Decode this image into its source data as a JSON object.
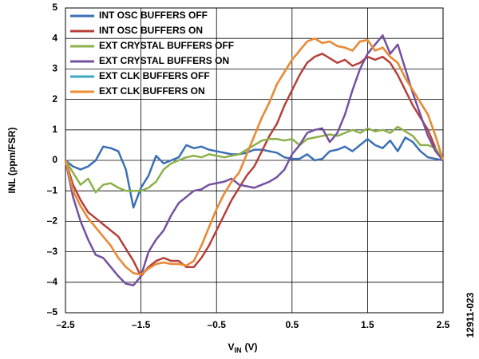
{
  "chart_data": {
    "type": "line",
    "ylabel": "INL (ppm/FSR)",
    "xlabel": "V",
    "xlabel_subscript": "IN",
    "xlabel_unit": "(V)",
    "figure_id": "12911-023",
    "x": [
      -2.5,
      -2.4,
      -2.3,
      -2.2,
      -2.1,
      -2.0,
      -1.9,
      -1.8,
      -1.7,
      -1.6,
      -1.5,
      -1.4,
      -1.3,
      -1.2,
      -1.1,
      -1.0,
      -0.9,
      -0.8,
      -0.7,
      -0.6,
      -0.5,
      -0.4,
      -0.3,
      -0.2,
      -0.1,
      0,
      0.1,
      0.2,
      0.3,
      0.4,
      0.5,
      0.6,
      0.7,
      0.8,
      0.9,
      1.0,
      1.1,
      1.2,
      1.3,
      1.4,
      1.5,
      1.6,
      1.7,
      1.8,
      1.9,
      2.0,
      2.1,
      2.2,
      2.3,
      2.4,
      2.5
    ],
    "xlim": [
      -2.5,
      2.5
    ],
    "xticks": [
      {
        "value": -2.5,
        "label": "–2.5"
      },
      {
        "value": -1.5,
        "label": "–1.5"
      },
      {
        "value": -0.5,
        "label": "–0.5"
      },
      0.5,
      1.5,
      2.5
    ],
    "ylim": [
      -5,
      5
    ],
    "yticks": [
      {
        "value": -5,
        "label": "–5"
      },
      {
        "value": -4,
        "label": "–4"
      },
      {
        "value": -3,
        "label": "–3"
      },
      {
        "value": -2,
        "label": "–2"
      },
      {
        "value": -1,
        "label": "–1"
      },
      0,
      1,
      2,
      3,
      4,
      5
    ],
    "grid": true,
    "legend": "upper-left",
    "series": [
      {
        "name": "INT OSC BUFFERS OFF",
        "color": "#3b6fb6",
        "values": [
          0,
          -0.2,
          -0.3,
          -0.2,
          0,
          0.45,
          0.4,
          0.3,
          -0.3,
          -1.55,
          -0.9,
          -0.5,
          0.15,
          -0.1,
          0,
          0.1,
          0.5,
          0.4,
          0.45,
          0.35,
          0.3,
          0.25,
          0.2,
          0.2,
          0.25,
          0.35,
          0.35,
          0.3,
          0.25,
          0.1,
          0.05,
          0.05,
          0.2,
          0,
          0.05,
          0.3,
          0.35,
          0.45,
          0.3,
          0.5,
          0.7,
          0.5,
          0.4,
          0.65,
          0.3,
          0.75,
          0.6,
          0.3,
          0.1,
          0.05,
          0
        ]
      },
      {
        "name": "INT OSC BUFFERS ON",
        "color": "#b5403a",
        "values": [
          0,
          -0.8,
          -1.3,
          -1.7,
          -1.9,
          -2.1,
          -2.3,
          -2.5,
          -2.9,
          -3.3,
          -3.8,
          -3.5,
          -3.3,
          -3.2,
          -3.3,
          -3.3,
          -3.5,
          -3.5,
          -3.2,
          -2.8,
          -2.3,
          -1.8,
          -1.3,
          -0.9,
          -0.5,
          -0.2,
          0.3,
          0.8,
          1.2,
          1.8,
          2.3,
          2.8,
          3.2,
          3.4,
          3.5,
          3.35,
          3.2,
          3.3,
          3.1,
          3.2,
          3.4,
          3.3,
          3.4,
          3.2,
          2.8,
          2.3,
          1.8,
          1.4,
          1.0,
          0.4,
          0
        ]
      },
      {
        "name": "EXT CRYSTAL BUFFERS OFF",
        "color": "#8cb04a",
        "values": [
          0,
          -0.4,
          -0.8,
          -0.6,
          -1.05,
          -0.8,
          -0.75,
          -0.9,
          -1.0,
          -1.0,
          -1.0,
          -0.9,
          -0.7,
          -0.3,
          -0.1,
          0,
          0.1,
          0.15,
          0.1,
          0.2,
          0.15,
          0.1,
          0.15,
          0.2,
          0.35,
          0.5,
          0.65,
          0.7,
          0.7,
          0.65,
          0.7,
          0.5,
          0.7,
          0.75,
          0.8,
          0.85,
          0.8,
          0.9,
          1.0,
          0.9,
          1.05,
          0.95,
          1.0,
          0.9,
          1.1,
          0.95,
          0.8,
          0.5,
          0.5,
          0.4,
          0
        ]
      },
      {
        "name": "EXT CRYSTAL BUFFERS ON",
        "color": "#7450a0",
        "values": [
          0,
          -1.2,
          -2.0,
          -2.6,
          -3.1,
          -3.2,
          -3.5,
          -3.8,
          -4.05,
          -4.1,
          -3.8,
          -3.0,
          -2.6,
          -2.3,
          -1.8,
          -1.4,
          -1.2,
          -1.0,
          -0.95,
          -0.8,
          -0.75,
          -0.7,
          -0.6,
          -0.8,
          -0.85,
          -0.9,
          -0.8,
          -0.7,
          -0.55,
          -0.3,
          0.2,
          0.5,
          0.9,
          1.0,
          1.05,
          0.6,
          0.9,
          1.5,
          2.3,
          3.0,
          3.5,
          3.8,
          4.1,
          3.5,
          3.8,
          3.0,
          2.2,
          1.5,
          0.8,
          0.3,
          0
        ]
      },
      {
        "name": "EXT CLK BUFFERS OFF",
        "color": "#3aa8c0",
        "values": [
          0,
          -1.0,
          -1.5,
          -1.9,
          -2.2,
          -2.5,
          -2.8,
          -3.2,
          -3.5,
          -3.7,
          -3.75,
          -3.55,
          -3.4,
          -3.35,
          -3.4,
          -3.4,
          -3.45,
          -3.3,
          -2.8,
          -2.2,
          -1.6,
          -1.1,
          -0.7,
          -0.4,
          0.2,
          0.8,
          1.4,
          1.9,
          2.5,
          2.9,
          3.3,
          3.6,
          3.9,
          4.0,
          3.85,
          3.9,
          3.75,
          3.7,
          3.6,
          3.9,
          3.95,
          3.6,
          3.7,
          3.4,
          3.2,
          2.7,
          2.3,
          1.9,
          1.5,
          0.8,
          0
        ]
      },
      {
        "name": "EXT CLK BUFFERS ON",
        "color": "#f08a30",
        "values": [
          0,
          -1.0,
          -1.5,
          -1.9,
          -2.2,
          -2.5,
          -2.8,
          -3.2,
          -3.5,
          -3.7,
          -3.75,
          -3.55,
          -3.4,
          -3.35,
          -3.4,
          -3.4,
          -3.45,
          -3.3,
          -2.8,
          -2.2,
          -1.6,
          -1.1,
          -0.7,
          -0.4,
          0.2,
          0.8,
          1.4,
          1.9,
          2.5,
          2.9,
          3.3,
          3.6,
          3.9,
          4.0,
          3.85,
          3.9,
          3.75,
          3.7,
          3.6,
          3.9,
          3.95,
          3.6,
          3.7,
          3.4,
          3.2,
          2.7,
          2.3,
          1.9,
          1.5,
          0.8,
          0
        ]
      }
    ]
  }
}
